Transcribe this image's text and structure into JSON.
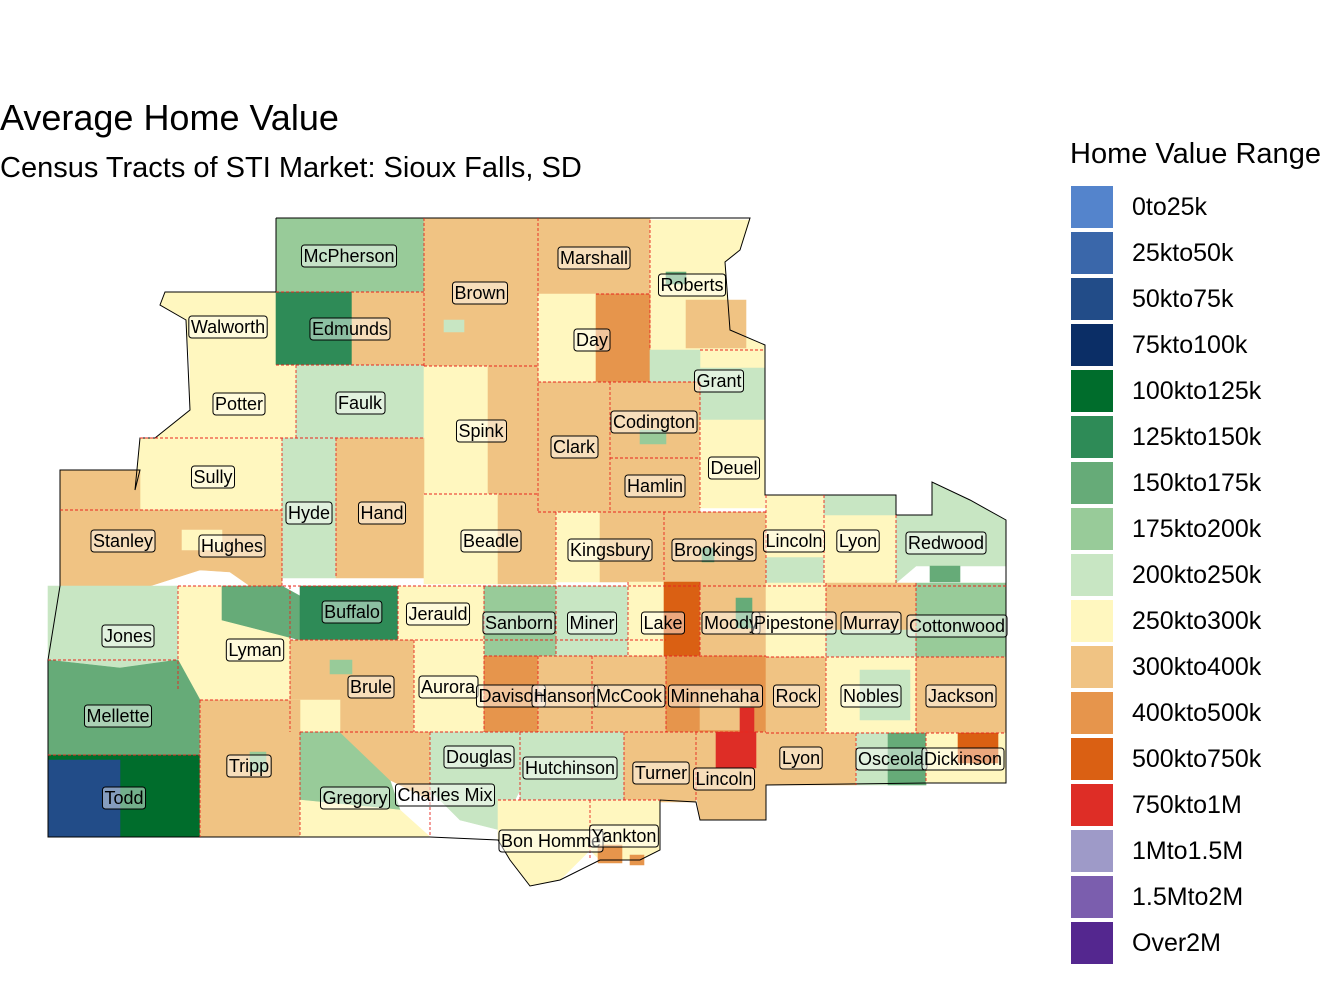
{
  "title": "Average Home Value",
  "subtitle": "Census Tracts of STI Market: Sioux Falls, SD",
  "legend": {
    "title": "Home Value Range",
    "items": [
      {
        "label": "0to25k",
        "color": "#5484CC"
      },
      {
        "label": "25kto50k",
        "color": "#3A67AA"
      },
      {
        "label": "50kto75k",
        "color": "#224C88"
      },
      {
        "label": "75kto100k",
        "color": "#0B2E66"
      },
      {
        "label": "100kto125k",
        "color": "#006D2C"
      },
      {
        "label": "125kto150k",
        "color": "#2E8B57"
      },
      {
        "label": "150kto175k",
        "color": "#66AB78"
      },
      {
        "label": "175kto200k",
        "color": "#98CB99"
      },
      {
        "label": "200kto250k",
        "color": "#C8E6C3"
      },
      {
        "label": "250kto300k",
        "color": "#FFF7BF"
      },
      {
        "label": "300kto400k",
        "color": "#F0C383"
      },
      {
        "label": "400kto500k",
        "color": "#E6954C"
      },
      {
        "label": "500kto750k",
        "color": "#DA6013"
      },
      {
        "label": "750kto1M",
        "color": "#DE2D26"
      },
      {
        "label": "1Mto1.5M",
        "color": "#9E9AC8"
      },
      {
        "label": "1.5Mto2M",
        "color": "#7B5EAE"
      },
      {
        "label": "Over2M",
        "color": "#54278F"
      }
    ]
  },
  "counties": [
    {
      "name": "McPherson"
    },
    {
      "name": "Brown"
    },
    {
      "name": "Marshall"
    },
    {
      "name": "Roberts"
    },
    {
      "name": "Walworth"
    },
    {
      "name": "Edmunds"
    },
    {
      "name": "Day"
    },
    {
      "name": "Grant"
    },
    {
      "name": "Potter"
    },
    {
      "name": "Faulk"
    },
    {
      "name": "Spink"
    },
    {
      "name": "Codington"
    },
    {
      "name": "Clark"
    },
    {
      "name": "Deuel"
    },
    {
      "name": "Hamlin"
    },
    {
      "name": "Sully"
    },
    {
      "name": "Hyde"
    },
    {
      "name": "Hand"
    },
    {
      "name": "Beadle"
    },
    {
      "name": "Kingsbury"
    },
    {
      "name": "Brookings"
    },
    {
      "name": "Lincoln"
    },
    {
      "name": "Lyon"
    },
    {
      "name": "Redwood"
    },
    {
      "name": "Stanley"
    },
    {
      "name": "Hughes"
    },
    {
      "name": "Buffalo"
    },
    {
      "name": "Jerauld"
    },
    {
      "name": "Sanborn"
    },
    {
      "name": "Miner"
    },
    {
      "name": "Lake"
    },
    {
      "name": "Moody"
    },
    {
      "name": "Pipestone"
    },
    {
      "name": "Murray"
    },
    {
      "name": "Cottonwood"
    },
    {
      "name": "Jones"
    },
    {
      "name": "Lyman"
    },
    {
      "name": "Brule"
    },
    {
      "name": "Aurora"
    },
    {
      "name": "Davison"
    },
    {
      "name": "Hanson"
    },
    {
      "name": "McCook"
    },
    {
      "name": "Minnehaha"
    },
    {
      "name": "Rock"
    },
    {
      "name": "Nobles"
    },
    {
      "name": "Jackson"
    },
    {
      "name": "Mellette"
    },
    {
      "name": "Tripp"
    },
    {
      "name": "Douglas"
    },
    {
      "name": "Hutchinson"
    },
    {
      "name": "Turner"
    },
    {
      "name": "Lincoln"
    },
    {
      "name": "Lyon"
    },
    {
      "name": "Osceola"
    },
    {
      "name": "Dickinson"
    },
    {
      "name": "Gregory"
    },
    {
      "name": "Charles Mix"
    },
    {
      "name": "Todd"
    },
    {
      "name": "Bon Homme"
    },
    {
      "name": "Yankton"
    }
  ]
}
